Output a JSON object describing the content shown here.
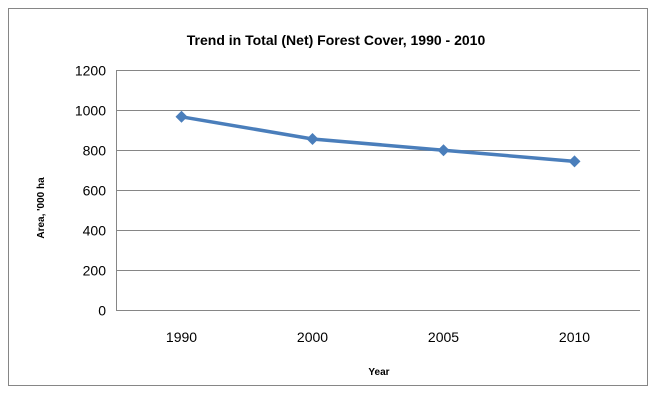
{
  "chart_data": {
    "type": "line",
    "title": "Trend in Total (Net) Forest Cover, 1990 - 2010",
    "xlabel": "Year",
    "ylabel": "Area, '000 ha",
    "categories": [
      "1990",
      "2000",
      "2005",
      "2010"
    ],
    "series": [
      {
        "values": [
          966,
          855,
          799,
          743
        ]
      }
    ],
    "ylim": [
      0,
      1200
    ],
    "yticks": [
      "0",
      "200",
      "400",
      "600",
      "800",
      "1000",
      "1200"
    ],
    "grid": true,
    "legend": "none",
    "colors": {
      "series": "#4a7ebb",
      "grid": "#868686",
      "border": "#868686"
    }
  }
}
